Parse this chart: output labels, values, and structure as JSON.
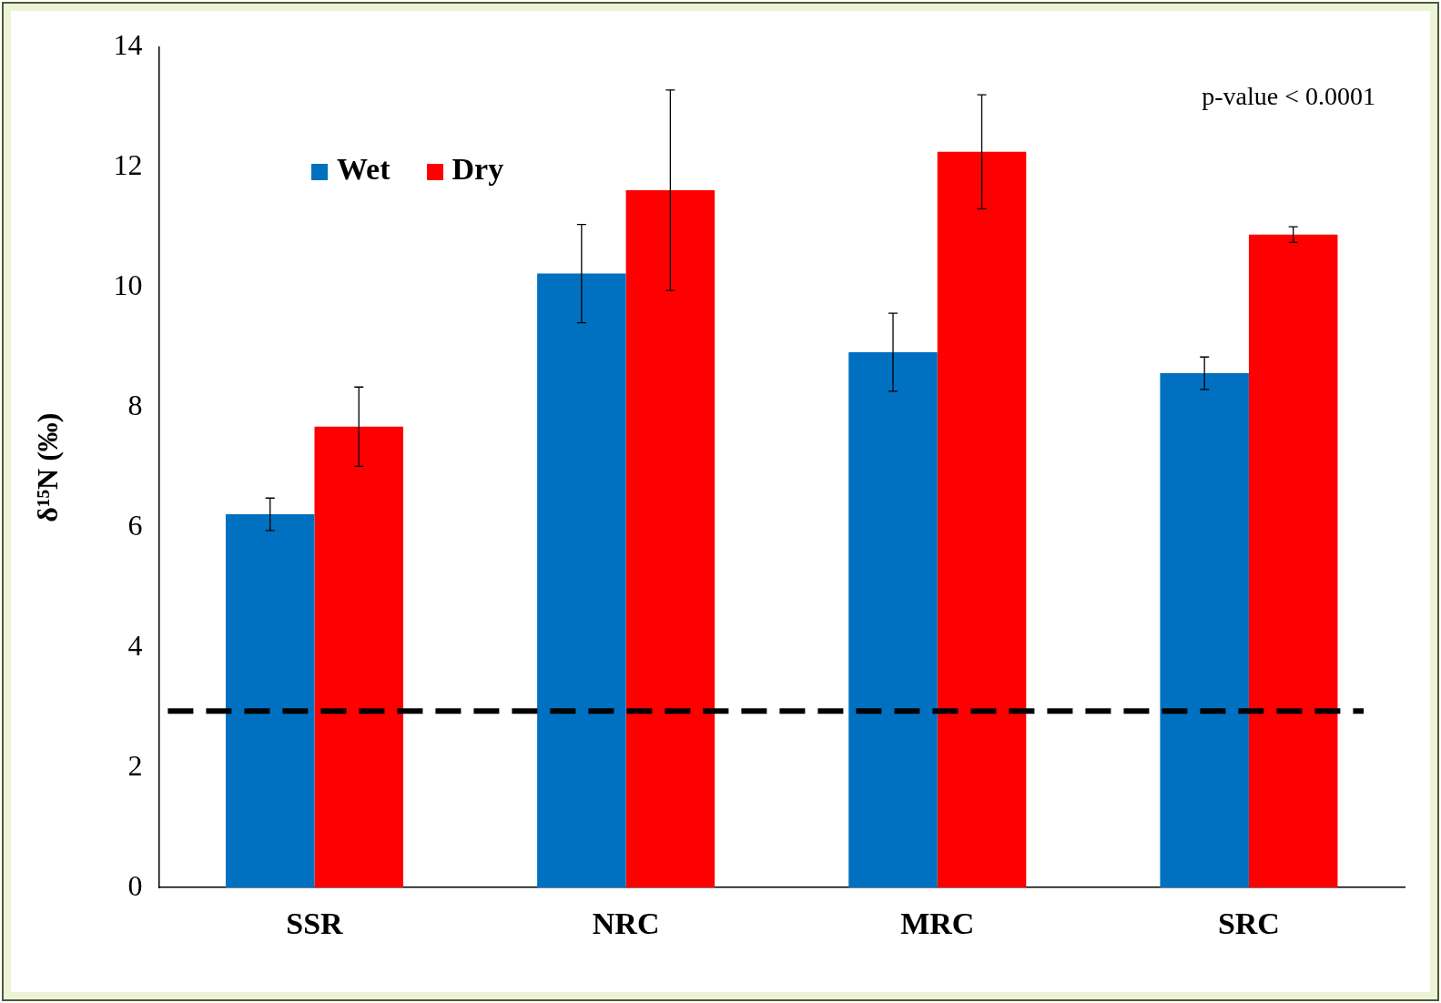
{
  "chart_data": {
    "type": "bar",
    "ylabel": "δ¹⁵N (‰)",
    "categories": [
      "SSR",
      "NRC",
      "MRC",
      "SRC"
    ],
    "series": [
      {
        "name": "Wet",
        "color": "#0070c0",
        "values": [
          6.22,
          10.23,
          8.92,
          8.57
        ],
        "errors": [
          0.27,
          0.82,
          0.65,
          0.27
        ]
      },
      {
        "name": "Dry",
        "color": "#ff0000",
        "values": [
          7.68,
          11.62,
          12.26,
          10.88
        ],
        "errors": [
          0.66,
          1.67,
          0.95,
          0.13
        ]
      }
    ],
    "ylim": [
      0,
      14
    ],
    "yticks": [
      0,
      2,
      4,
      6,
      8,
      10,
      12,
      14
    ],
    "grid": false,
    "legend": "top left",
    "ref_lines": [
      {
        "axis": "y",
        "value": 2.94,
        "color": "#000000",
        "line_style": "dashed"
      }
    ],
    "annotations": [
      "p-value < 0.0001"
    ]
  }
}
